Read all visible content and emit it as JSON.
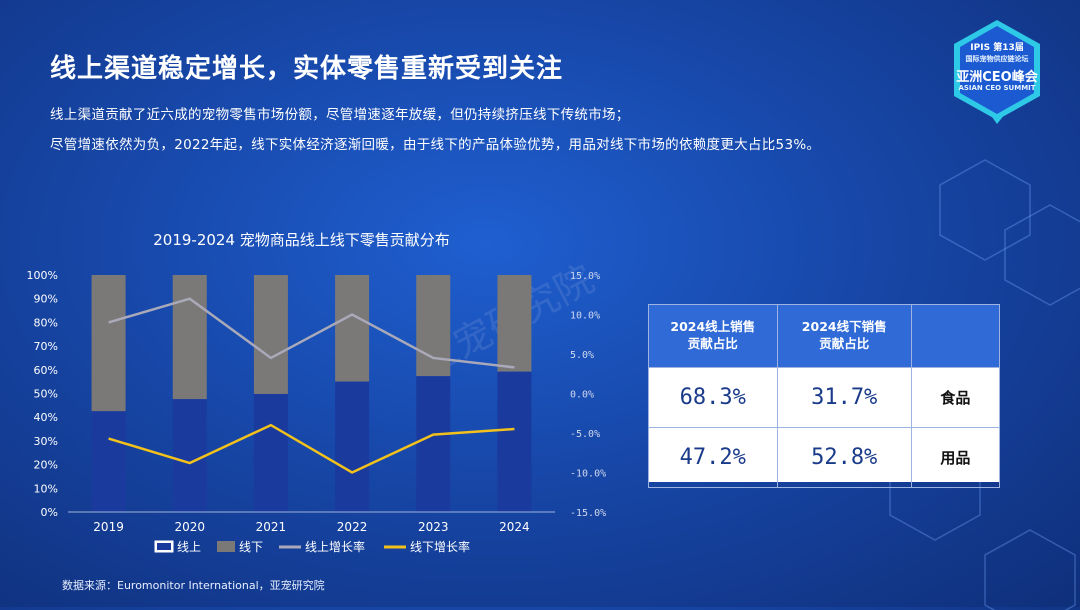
{
  "slide": {
    "title": "线上渠道稳定增长，实体零售重新受到关注",
    "line1": "线上渠道贡献了近六成的宠物零售市场份额，尽管增速逐年放缓，但仍持续挤压线下传统市场；",
    "line2": "尽管增速依然为负，2022年起，线下实体经济逐渐回暖，由于线下的产品体验优势，用品对线下市场的依赖度更大占比53%。",
    "source": "数据来源：Euromonitor International，亚宠研究院",
    "watermark": "亚宠研究院"
  },
  "logo": {
    "line1": "IPIS 第13届",
    "line2": "国际宠物供应链论坛",
    "line3": "亚洲CEO峰会",
    "line4": "ASIAN CEO SUMMIT",
    "color": "#2ec9e6"
  },
  "chart_data": {
    "type": "bar",
    "title": "2019-2024 宠物商品线上线下零售贡献分布",
    "categories": [
      "2019",
      "2020",
      "2021",
      "2022",
      "2023",
      "2024"
    ],
    "ylim": [
      0,
      100
    ],
    "y_ticks": [
      "0%",
      "10%",
      "20%",
      "30%",
      "40%",
      "50%",
      "60%",
      "70%",
      "80%",
      "90%",
      "100%"
    ],
    "y2lim": [
      -15,
      15
    ],
    "y2_ticks": [
      "-15.0%",
      "-10.0%",
      "-5.0%",
      "0.0%",
      "5.0%",
      "10.0%",
      "15.0%"
    ],
    "series": [
      {
        "name": "线上",
        "kind": "bar",
        "color": "#1a3a9e",
        "values": [
          42.5,
          47.6,
          49.8,
          55.0,
          57.3,
          59.2
        ]
      },
      {
        "name": "线下",
        "kind": "bar",
        "color": "#7b7878",
        "values": [
          57.5,
          52.4,
          50.2,
          45.0,
          42.7,
          40.8
        ]
      },
      {
        "name": "线上增长率",
        "kind": "line",
        "axis": "secondary",
        "color": "#a9a9b9",
        "values": [
          9.0,
          12.0,
          4.5,
          10.0,
          4.5,
          3.3
        ]
      },
      {
        "name": "线下增长率",
        "kind": "line",
        "axis": "secondary",
        "color": "#f2c11b",
        "values": [
          -5.7,
          -8.8,
          -4.0,
          -10.0,
          -5.2,
          -4.5
        ]
      }
    ],
    "legend": "bottom"
  },
  "table": {
    "headers": [
      "2024线上销售\n贡献占比",
      "2024线下销售\n贡献占比",
      ""
    ],
    "rows": [
      {
        "online": "68.3%",
        "offline": "31.7%",
        "label": "食品"
      },
      {
        "online": "47.2%",
        "offline": "52.8%",
        "label": "用品"
      }
    ]
  }
}
